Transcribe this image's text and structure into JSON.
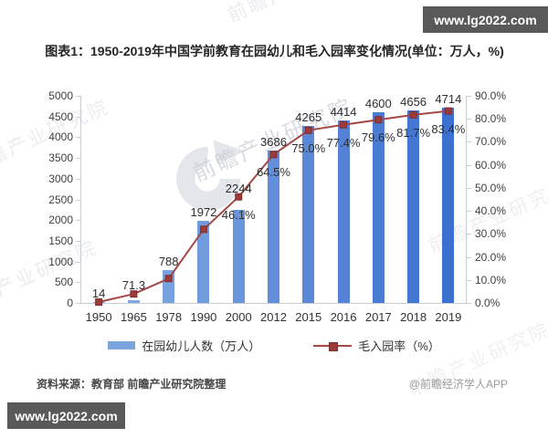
{
  "badges": {
    "top_right": "www.lg2022.com",
    "bottom_left": "www.lg2022.com"
  },
  "title": "图表1：1950-2019年中国学前教育在园幼儿和毛入园率变化情况(单位：万人，%)",
  "watermark": {
    "text": "前瞻产业研究院",
    "logo": "qianzhan-logo"
  },
  "source_note": "资料来源：教育部 前瞻产业研究院整理",
  "credit": "@前瞻经济学人APP",
  "colors": {
    "bar_light": "#87ADE1",
    "bar_dark": "#3C70D1",
    "legend_bar": "#7BA3DC",
    "line": "#A54747",
    "marker_fill": "#9D3B3B",
    "marker_stroke": "#7E2F2F",
    "axis": "#c9ced4",
    "badge_bg": "#595959"
  },
  "chart_data": {
    "type": "bar+line",
    "categories": [
      "1950",
      "1965",
      "1978",
      "1990",
      "2000",
      "2012",
      "2015",
      "2016",
      "2017",
      "2018",
      "2019"
    ],
    "series": [
      {
        "name": "在园幼儿人数（万人）",
        "type": "bar",
        "axis": "left",
        "values": [
          14,
          71.3,
          788,
          1972,
          2244,
          3686,
          4265,
          4414,
          4600,
          4656,
          4714
        ],
        "labels": [
          "14",
          "71.3",
          "788",
          "1972",
          "2244",
          "3686",
          "4265",
          "4414",
          "4600",
          "4656",
          "4714"
        ]
      },
      {
        "name": "毛入园率（%）",
        "type": "line",
        "axis": "right",
        "values": [
          0.4,
          3.9,
          10.6,
          32.0,
          46.1,
          64.5,
          75.0,
          77.4,
          79.6,
          81.7,
          83.4
        ],
        "labels": [
          null,
          null,
          null,
          null,
          "46.1%",
          "64.5%",
          "75.0%",
          "77.4%",
          "79.6%",
          "81.7%",
          "83.4%"
        ]
      }
    ],
    "left_axis": {
      "min": 0,
      "max": 5000,
      "step": 500
    },
    "right_axis": {
      "min": 0,
      "max": 90,
      "step": 10,
      "format": "percent_1dp"
    },
    "legend": [
      "在园幼儿人数（万人）",
      "毛入园率（%）"
    ],
    "grid": false,
    "legend_position": "bottom"
  }
}
